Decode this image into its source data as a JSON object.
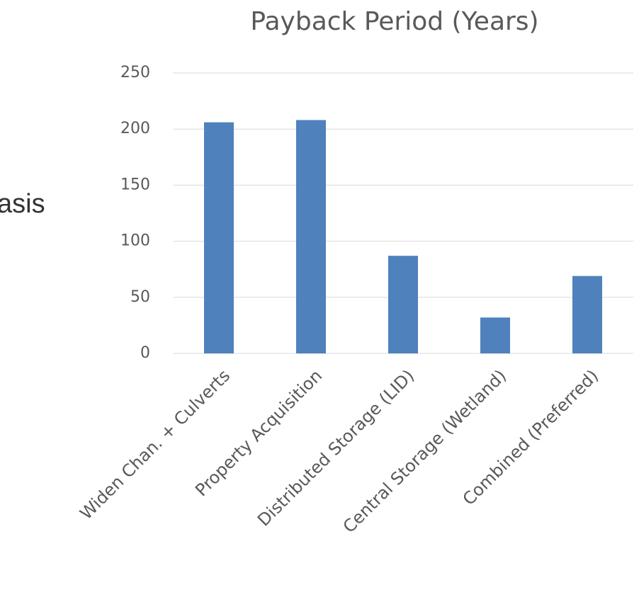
{
  "chart_data": {
    "type": "bar",
    "title": "Payback Period (Years)",
    "annotations": [
      "asis"
    ],
    "categories": [
      "Widen Chan. + Culverts",
      "Property Acquisition",
      "Distributed Storage (LID)",
      "Central Storage (Wetland)",
      "Combined (Preferred)"
    ],
    "values": [
      206,
      208,
      87,
      32,
      69
    ],
    "color": "#4f81bd",
    "ylim": [
      0,
      250
    ],
    "yticks": [
      0,
      50,
      100,
      150,
      200,
      250
    ],
    "grid": true
  }
}
